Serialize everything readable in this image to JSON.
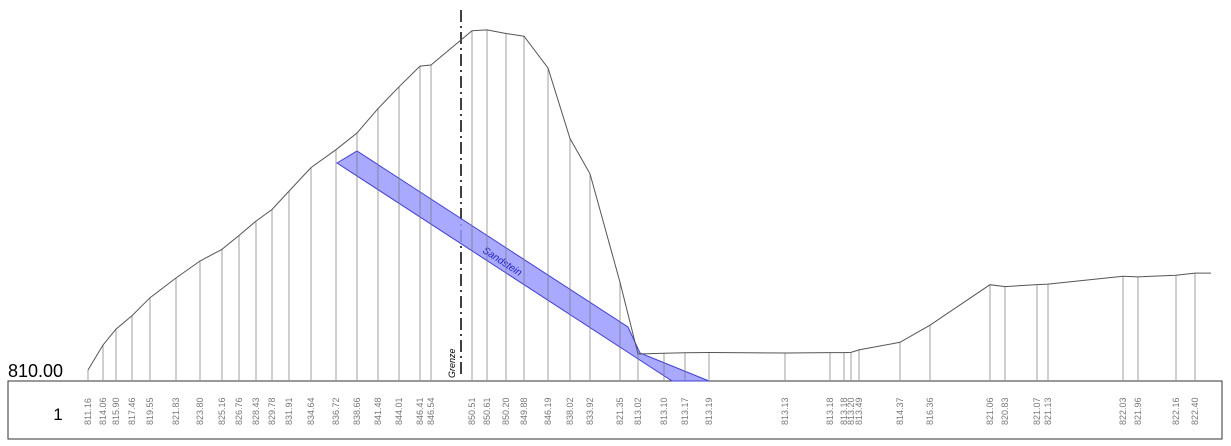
{
  "datum": "810.00",
  "row_label": "1",
  "boundary_label": "Grenze",
  "layer_label": "Sandstein",
  "elevations": [
    "811.16",
    "814.06",
    "815.90",
    "817.46",
    "819.55",
    "821.83",
    "823.80",
    "825.16",
    "826.76",
    "828.43",
    "829.78",
    "831.91",
    "834.64",
    "836.72",
    "838.66",
    "841.48",
    "844.01",
    "846.41",
    "846.54",
    "850.51",
    "850.61",
    "850.20",
    "849.88",
    "846.19",
    "838.02",
    "833.92",
    "821.35",
    "813.02",
    "813.10",
    "813.17",
    "813.19",
    "813.13",
    "813.18",
    "813.18",
    "813.20",
    "813.49",
    "814.37",
    "816.36",
    "821.06",
    "820.83",
    "821.07",
    "821.13",
    "822.03",
    "821.96",
    "822.16",
    "822.40"
  ]
}
